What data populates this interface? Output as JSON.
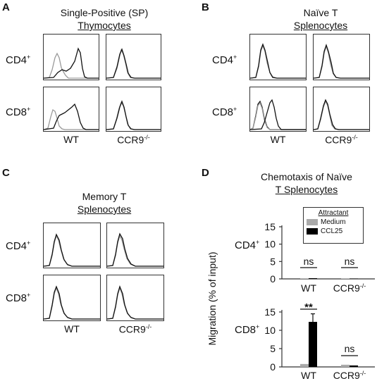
{
  "panels": {
    "A": {
      "letter": "A",
      "title_line1": "Single-Positive (SP)",
      "title_line2": "Thymocytes",
      "rows": [
        "CD4",
        "CD8"
      ],
      "row_sup": "+",
      "cols": [
        "WT",
        "CCR9"
      ],
      "ccr9_sup": "-/-"
    },
    "B": {
      "letter": "B",
      "title_line1": "Naïve T",
      "title_line2": "Splenocytes",
      "rows": [
        "CD4",
        "CD8"
      ],
      "row_sup": "+",
      "cols": [
        "WT",
        "CCR9"
      ],
      "ccr9_sup": "-/-"
    },
    "C": {
      "letter": "C",
      "title_line1": "Memory T",
      "title_line2": "Splenocytes",
      "rows": [
        "CD4",
        "CD8"
      ],
      "row_sup": "+",
      "cols": [
        "WT",
        "CCR9"
      ],
      "ccr9_sup": "-/-"
    },
    "D": {
      "letter": "D",
      "title_line1": "Chemotaxis of Naïve",
      "title_line2": "T Splenocytes",
      "ylabel": "Migration (% of input)",
      "legend_title": "Attractant",
      "rows": [
        "CD4",
        "CD8"
      ],
      "row_sup": "+",
      "sig_cd4_wt": "ns",
      "sig_cd4_ccr9": "ns",
      "sig_cd8_wt": "**",
      "sig_cd8_ccr9": "ns",
      "wt_label": "WT",
      "ccr9_label": "CCR9",
      "ccr9_sup": "-/-"
    }
  },
  "chart_data": [
    {
      "type": "bar",
      "title": "Chemotaxis of Naïve T Splenocytes",
      "row_label": "CD4+",
      "categories": [
        "WT",
        "CCR9-/-"
      ],
      "series": [
        {
          "name": "Medium",
          "values": [
            0.1,
            0.1
          ],
          "color": "#aaaaaa"
        },
        {
          "name": "CCL25",
          "values": [
            0.2,
            0.1
          ],
          "color": "#000000"
        }
      ],
      "ylim": [
        0,
        15
      ],
      "yticks": [
        0,
        5,
        10,
        15
      ],
      "ylabel": "Migration (% of input)",
      "legend": "top-right"
    },
    {
      "type": "bar",
      "row_label": "CD8+",
      "categories": [
        "WT",
        "CCR9-/-"
      ],
      "series": [
        {
          "name": "Medium",
          "values": [
            0.8,
            0.6
          ],
          "color": "#aaaaaa"
        },
        {
          "name": "CCL25",
          "values": [
            12.3,
            0.4
          ],
          "color": "#000000",
          "errors": [
            2.2,
            0
          ]
        }
      ],
      "ylim": [
        0,
        15
      ],
      "yticks": [
        0,
        5,
        10,
        15
      ],
      "ylabel": "Migration (% of input)"
    }
  ]
}
